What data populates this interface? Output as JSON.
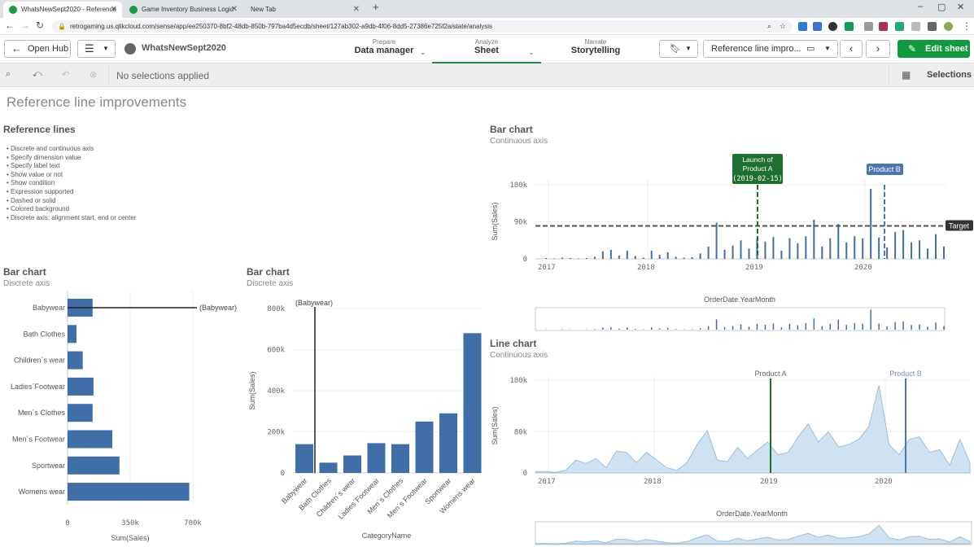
{
  "browser": {
    "tabs": [
      {
        "title": "WhatsNewSept2020 - Reference",
        "active": true
      },
      {
        "title": "Game Inventory Business Logic",
        "active": false
      },
      {
        "title": "New Tab",
        "active": false
      }
    ],
    "new_tab_symbol": "+",
    "url": "retrogaming.us.qlikcloud.com/sense/app/ee250370-8bf2-48db-850b-797ba4d5ecdb/sheet/127ab302-a9db-4f06-8dd5-27386e725f2a/state/analysis"
  },
  "toolbar": {
    "open_hub": "Open Hub",
    "app_name": "WhatsNewSept2020",
    "nav": [
      {
        "sup": "Prepare",
        "main": "Data manager"
      },
      {
        "sup": "Analyze",
        "main": "Sheet"
      },
      {
        "sup": "Narrate",
        "main": "Storytelling"
      }
    ],
    "sheet_selector": "Reference line impro...",
    "edit_sheet": "Edit sheet"
  },
  "selections_bar": {
    "status": "No selections applied",
    "selections_label": "Selections"
  },
  "sheet": {
    "title": "Reference line improvements",
    "reference_lines": {
      "title": "Reference lines",
      "bullets": [
        "Discrete and continuous axis",
        "Specify dimension value",
        "Specify label text",
        "Show value or not",
        "Show condition",
        "Expression supported",
        "Dashed or solid",
        "Colored background",
        "Discrete axis: alignment start, end or center"
      ]
    }
  },
  "colors": {
    "bar": "#3f6ea8",
    "accent_green": "#1d6f32",
    "area_fill": "#cfe2f2",
    "area_line": "#9dbedb",
    "edit_button": "#119b3f"
  },
  "chart_data": [
    {
      "type": "bar",
      "orientation": "horizontal",
      "title": "Bar chart",
      "subtitle": "Discrete axis",
      "categories": [
        "Babywear",
        "Bath Clothes",
        "Children´s wear",
        "Ladies´Footwear",
        "Men´s Clothes",
        "Men´s Footwear",
        "Sportwear",
        "Womens wear"
      ],
      "values": [
        140000,
        50000,
        85000,
        145000,
        140000,
        250000,
        290000,
        680000
      ],
      "xlabel": "Sum(Sales)",
      "xlim": [
        0,
        700000
      ],
      "ticks": [
        "0",
        "350k",
        "700k"
      ],
      "reference_line": {
        "category": "Babywear",
        "label": "(Babywear)"
      }
    },
    {
      "type": "bar",
      "orientation": "vertical",
      "title": "Bar chart",
      "subtitle": "Discrete axis",
      "categories": [
        "Babywear",
        "Bath Clothes",
        "Children´s wear",
        "Ladies´Footwear",
        "Men´s Clothes",
        "Men´s Footwear",
        "Sportwear",
        "Womens wear"
      ],
      "values": [
        140000,
        50000,
        85000,
        145000,
        140000,
        250000,
        290000,
        680000
      ],
      "xlabel": "CategoryName",
      "ylabel": "Sum(Sales)",
      "ylim": [
        0,
        800000
      ],
      "ticks": [
        "0",
        "200k",
        "400k",
        "600k",
        "800k"
      ],
      "reference_line": {
        "category": "Babywear",
        "label": "(Babywear)"
      }
    },
    {
      "type": "bar",
      "title": "Bar chart",
      "subtitle": "Continuous axis",
      "xlabel": "OrderDate.YearMonth",
      "ylabel": "Sum(Sales)",
      "ylim": [
        0,
        180000
      ],
      "ticks": [
        "0",
        "90k",
        "180k"
      ],
      "x_ticks": [
        "2017",
        "2018",
        "2019",
        "2020"
      ],
      "x_range": [
        "2017-01",
        "2020-12"
      ],
      "values": [
        2000,
        1000,
        3000,
        2000,
        1000,
        2000,
        5000,
        18000,
        22000,
        8000,
        20000,
        7000,
        3000,
        20000,
        10000,
        16000,
        5000,
        3000,
        4000,
        13000,
        30000,
        88000,
        22000,
        32000,
        45000,
        25000,
        50000,
        42000,
        53000,
        20000,
        50000,
        38000,
        55000,
        95000,
        30000,
        50000,
        85000,
        40000,
        55000,
        50000,
        170000,
        52000,
        28000,
        65000,
        70000,
        40000,
        45000,
        25000,
        60000,
        30000
      ],
      "reference_lines": [
        {
          "type": "dimension",
          "label": "Launch of Product A (2019-02-15)",
          "x": "2019-02-15",
          "style": "dashed"
        },
        {
          "type": "dimension",
          "label": "Product B",
          "x": "2020-03",
          "style": "dashed"
        },
        {
          "type": "measure",
          "label": "Target",
          "y": 80000,
          "style": "dashed"
        }
      ]
    },
    {
      "type": "area",
      "title": "Line chart",
      "subtitle": "Continuous axis",
      "xlabel": "OrderDate.YearMonth",
      "ylabel": "Sum(Sales)",
      "ylim": [
        0,
        180000
      ],
      "ticks": [
        "0",
        "80k",
        "180k"
      ],
      "x_ticks": [
        "2017",
        "2018",
        "2019",
        "2020"
      ],
      "values": [
        2000,
        3000,
        1000,
        5000,
        25000,
        18000,
        28000,
        10000,
        42000,
        40000,
        20000,
        40000,
        25000,
        10000,
        5000,
        20000,
        55000,
        82000,
        25000,
        22000,
        50000,
        28000,
        45000,
        60000,
        35000,
        40000,
        70000,
        95000,
        60000,
        80000,
        50000,
        55000,
        65000,
        90000,
        170000,
        55000,
        35000,
        65000,
        70000,
        40000,
        45000,
        15000,
        65000,
        20000
      ],
      "reference_lines": [
        {
          "label": "Product A",
          "x": "2019-03",
          "style": "solid"
        },
        {
          "label": "Product B",
          "x": "2020-03",
          "style": "solid"
        }
      ]
    }
  ]
}
